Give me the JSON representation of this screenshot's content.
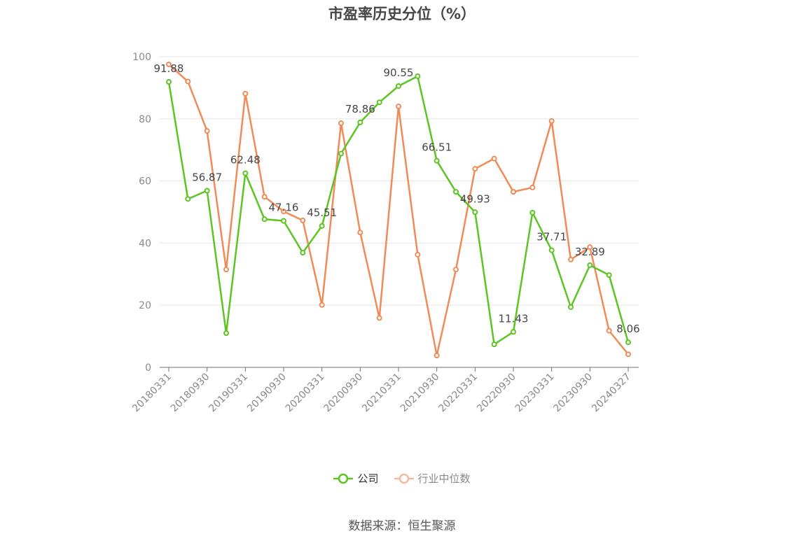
{
  "title": "市盈率历史分位（%）",
  "source_note": "数据来源：恒生聚源",
  "colors": {
    "company": "#5cc522",
    "industry": "#f08b58",
    "industry_legend": "#f6b8a0",
    "grid": "#e6e6e6",
    "axis": "#6e7079"
  },
  "chart_data": {
    "type": "line",
    "title": "市盈率历史分位（%）",
    "ylim": [
      0,
      100
    ],
    "yticks": [
      0,
      20,
      40,
      60,
      80,
      100
    ],
    "x": [
      "20180331",
      "20180630",
      "20180930",
      "20181231",
      "20190331",
      "20190630",
      "20190930",
      "20191231",
      "20200331",
      "20200630",
      "20200930",
      "20201231",
      "20210331",
      "20210630",
      "20210930",
      "20211231",
      "20220331",
      "20220630",
      "20220930",
      "20221231",
      "20230331",
      "20230630",
      "20230930",
      "20231231",
      "20240327"
    ],
    "xtick_labels": [
      "20180331",
      "20180930",
      "20190331",
      "20190930",
      "20200331",
      "20200930",
      "20210331",
      "20210930",
      "20220331",
      "20220930",
      "20230331",
      "20230930",
      "20240327"
    ],
    "series": [
      {
        "name": "公司",
        "values": [
          91.88,
          54.2,
          56.87,
          11.0,
          62.48,
          47.7,
          47.16,
          36.9,
          45.51,
          68.8,
          78.86,
          85.3,
          90.55,
          93.7,
          66.51,
          56.5,
          49.93,
          7.4,
          11.43,
          49.8,
          37.71,
          19.4,
          32.89,
          29.7,
          8.06
        ]
      },
      {
        "name": "行业中位数",
        "values": [
          97.5,
          92.0,
          76.1,
          31.5,
          88.1,
          54.9,
          50.2,
          47.3,
          20.1,
          78.6,
          43.4,
          15.9,
          84.0,
          36.3,
          3.8,
          31.5,
          63.9,
          67.2,
          56.5,
          57.9,
          79.3,
          34.7,
          38.7,
          11.8,
          4.2
        ]
      }
    ],
    "data_labels": [
      {
        "index": 0,
        "text": "91.88"
      },
      {
        "index": 2,
        "text": "56.87"
      },
      {
        "index": 4,
        "text": "62.48"
      },
      {
        "index": 6,
        "text": "47.16"
      },
      {
        "index": 8,
        "text": "45.51"
      },
      {
        "index": 10,
        "text": "78.86"
      },
      {
        "index": 12,
        "text": "90.55"
      },
      {
        "index": 14,
        "text": "66.51"
      },
      {
        "index": 16,
        "text": "49.93"
      },
      {
        "index": 18,
        "text": "11.43"
      },
      {
        "index": 20,
        "text": "37.71"
      },
      {
        "index": 22,
        "text": "32.89"
      },
      {
        "index": 24,
        "text": "8.06"
      }
    ],
    "legend": [
      "公司",
      "行业中位数"
    ],
    "legend_position": "bottom-center",
    "grid": true
  }
}
